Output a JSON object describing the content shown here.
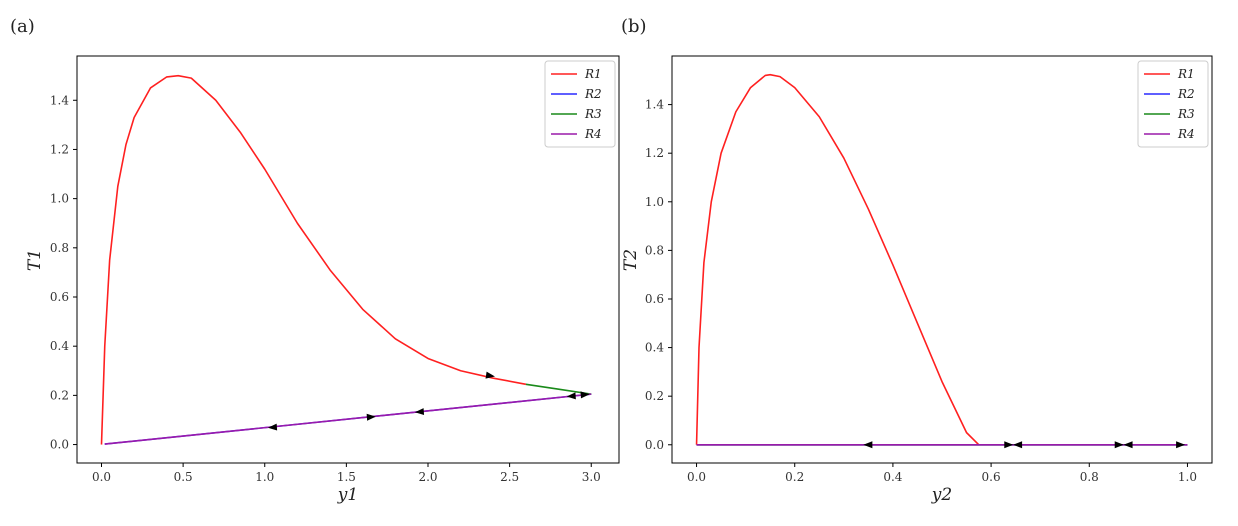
{
  "chart_data": [
    {
      "type": "line",
      "panel_label": "(a)",
      "xlabel": "y1",
      "ylabel": "T1",
      "xlim": [
        -0.15,
        3.17
      ],
      "ylim": [
        -0.075,
        1.58
      ],
      "xticks": [
        0.0,
        0.5,
        1.0,
        1.5,
        2.0,
        2.5,
        3.0
      ],
      "yticks": [
        0.0,
        0.2,
        0.4,
        0.6,
        0.8,
        1.0,
        1.2,
        1.4
      ],
      "tick_decimals": 1,
      "legend_placement": "top-right",
      "grid": false,
      "series": [
        {
          "name": "R1",
          "color": "#ff2020",
          "x": [
            0.0,
            0.02,
            0.05,
            0.1,
            0.15,
            0.2,
            0.3,
            0.4,
            0.47,
            0.55,
            0.7,
            0.85,
            1.0,
            1.2,
            1.4,
            1.6,
            1.8,
            2.0,
            2.2,
            2.4,
            2.6
          ],
          "y": [
            0.0,
            0.4,
            0.75,
            1.05,
            1.22,
            1.33,
            1.45,
            1.495,
            1.5,
            1.49,
            1.4,
            1.27,
            1.12,
            0.9,
            0.71,
            0.55,
            0.43,
            0.35,
            0.3,
            0.27,
            0.245
          ]
        },
        {
          "name": "R2",
          "color": "#2a2aff",
          "x": [
            0.02,
            3.0
          ],
          "y": [
            0.002,
            0.205
          ]
        },
        {
          "name": "R3",
          "color": "#1a8a1a",
          "x": [
            2.6,
            2.8,
            3.0
          ],
          "y": [
            0.245,
            0.225,
            0.205
          ]
        },
        {
          "name": "R4",
          "color": "#9a1aaa",
          "x": [
            0.02,
            3.0
          ],
          "y": [
            0.002,
            0.205
          ]
        }
      ],
      "arrows": [
        {
          "x": 2.38,
          "y": 0.28,
          "dx": 1,
          "dy": -0.15
        },
        {
          "x": 1.05,
          "y": 0.07,
          "dx": -1,
          "dy": -0.07
        },
        {
          "x": 1.65,
          "y": 0.112,
          "dx": 1,
          "dy": 0.07
        },
        {
          "x": 1.95,
          "y": 0.133,
          "dx": -1,
          "dy": -0.07
        },
        {
          "x": 2.88,
          "y": 0.197,
          "dx": -1,
          "dy": -0.07
        },
        {
          "x": 2.96,
          "y": 0.203,
          "dx": 1,
          "dy": 0.07
        }
      ]
    },
    {
      "type": "line",
      "panel_label": "(b)",
      "xlabel": "y2",
      "ylabel": "T2",
      "xlim": [
        -0.05,
        1.05
      ],
      "ylim": [
        -0.075,
        1.6
      ],
      "xticks": [
        0.0,
        0.2,
        0.4,
        0.6,
        0.8,
        1.0
      ],
      "yticks": [
        0.0,
        0.2,
        0.4,
        0.6,
        0.8,
        1.0,
        1.2,
        1.4
      ],
      "tick_decimals": 1,
      "legend_placement": "top-right",
      "grid": false,
      "series": [
        {
          "name": "R1",
          "color": "#ff2020",
          "x": [
            0.0,
            0.005,
            0.015,
            0.03,
            0.05,
            0.08,
            0.11,
            0.14,
            0.15,
            0.17,
            0.2,
            0.25,
            0.3,
            0.35,
            0.4,
            0.45,
            0.5,
            0.55,
            0.575
          ],
          "y": [
            0.0,
            0.4,
            0.75,
            1.0,
            1.2,
            1.37,
            1.47,
            1.52,
            1.523,
            1.515,
            1.47,
            1.35,
            1.18,
            0.97,
            0.74,
            0.5,
            0.26,
            0.05,
            0.0
          ]
        },
        {
          "name": "R2",
          "color": "#2a2aff",
          "x": [
            0.0,
            1.0
          ],
          "y": [
            0.0,
            0.0
          ]
        },
        {
          "name": "R3",
          "color": "#1a8a1a",
          "x": [
            0.0,
            1.0
          ],
          "y": [
            0.0,
            0.0
          ]
        },
        {
          "name": "R4",
          "color": "#9a1aaa",
          "x": [
            0.0,
            1.0
          ],
          "y": [
            0.0,
            0.0
          ]
        }
      ],
      "arrows": [
        {
          "x": 0.35,
          "y": 0.0,
          "dx": -1,
          "dy": 0
        },
        {
          "x": 0.635,
          "y": 0.0,
          "dx": 1,
          "dy": 0
        },
        {
          "x": 0.655,
          "y": 0.0,
          "dx": -1,
          "dy": 0
        },
        {
          "x": 0.86,
          "y": 0.0,
          "dx": 1,
          "dy": 0
        },
        {
          "x": 0.88,
          "y": 0.0,
          "dx": -1,
          "dy": 0
        },
        {
          "x": 0.985,
          "y": 0.0,
          "dx": 1,
          "dy": 0
        }
      ]
    }
  ]
}
